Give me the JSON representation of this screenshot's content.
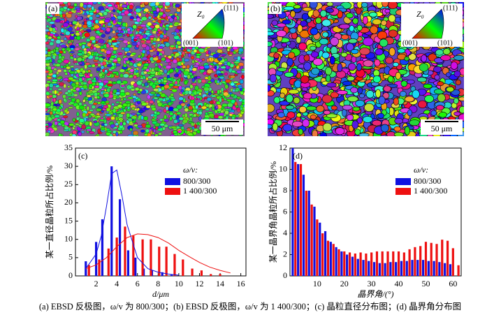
{
  "panels": [
    {
      "label": "(a)",
      "z_label": "Z₀",
      "poles": [
        "(111)",
        "(001)",
        "(101)"
      ],
      "scale_bar": "50 μm"
    },
    {
      "label": "(b)",
      "z_label": "Z₀",
      "poles": [
        "(111)",
        "(001)",
        "(101)"
      ],
      "scale_bar": "50 μm"
    }
  ],
  "chart_data": [
    {
      "type": "bar",
      "panel_label": "(c)",
      "ylabel": "某一直径晶粒所占比例/%",
      "xlabel": "d/μm",
      "legend_title": "ω/v:",
      "xlim": [
        0,
        16.5
      ],
      "ylim": [
        0,
        35
      ],
      "xticks": [
        2,
        4,
        6,
        8,
        10,
        12,
        14,
        16
      ],
      "yticks": [
        0,
        5,
        10,
        15,
        20,
        25,
        30,
        35
      ],
      "series": [
        {
          "name": "800/300",
          "color": "#1010e0",
          "x": [
            1,
            2,
            2.6,
            3.5,
            4.3,
            5.1,
            5.8,
            6.6,
            7.4,
            8.4,
            9.3
          ],
          "values": [
            4,
            9.3,
            15.5,
            30,
            21,
            7,
            5,
            2,
            1.5,
            1,
            0.3
          ]
        },
        {
          "name": "1 400/300",
          "color": "#ee1010",
          "x": [
            1.3,
            2.3,
            3.2,
            4.0,
            4.8,
            5.6,
            6.5,
            7.3,
            8.1,
            8.8,
            9.6,
            10.4,
            11.3,
            12.2,
            13.1,
            14.0
          ],
          "values": [
            3,
            4.5,
            7.5,
            10.5,
            13.5,
            11,
            10,
            10,
            8,
            8,
            6,
            4.5,
            2,
            1.5,
            0.5,
            0.5
          ]
        }
      ],
      "curves": [
        {
          "color": "#1010e0",
          "x": [
            1,
            2,
            2.5,
            3,
            3.5,
            4,
            4.5,
            5,
            6,
            7,
            8,
            9,
            10
          ],
          "values": [
            2,
            6,
            11,
            19,
            28,
            29,
            22,
            14,
            5,
            2,
            1,
            0.5,
            0.2
          ]
        },
        {
          "color": "#ee1010",
          "x": [
            1,
            2,
            3,
            4,
            5,
            6,
            7,
            8,
            9,
            10,
            11,
            12,
            13,
            14,
            15
          ],
          "values": [
            2,
            3,
            5,
            8,
            10.5,
            11.5,
            11.3,
            10.5,
            9,
            7,
            5.3,
            3.7,
            2.4,
            1.5,
            0.8
          ]
        }
      ]
    },
    {
      "type": "bar",
      "panel_label": "(d)",
      "ylabel": "某一晶界角晶粒所占比例/%",
      "xlabel": "晶界角/(°)",
      "legend_title": "ω/v:",
      "xlim": [
        0,
        63
      ],
      "ylim": [
        0,
        12
      ],
      "xticks": [
        10,
        20,
        30,
        40,
        50,
        60
      ],
      "yticks": [
        0,
        2,
        4,
        6,
        8,
        10,
        12
      ],
      "series": [
        {
          "name": "800/300",
          "color": "#1010e0",
          "x": [
            1,
            3,
            5,
            7,
            9,
            11,
            13,
            15,
            17,
            19,
            21,
            23,
            25,
            27,
            29,
            31,
            33,
            35,
            37,
            39,
            41,
            43,
            45,
            47,
            49,
            51,
            53,
            55,
            57,
            59
          ],
          "values": [
            12,
            10.5,
            9.5,
            8,
            6.5,
            5,
            4.2,
            3.2,
            2.7,
            2.3,
            2,
            1.8,
            1.6,
            1.5,
            1.4,
            1.3,
            1.2,
            1.2,
            1.3,
            1.3,
            1.4,
            1.4,
            1.5,
            1.5,
            1.5,
            1.4,
            1.4,
            1.3,
            1.2,
            1.1
          ]
        },
        {
          "name": "1 400/300",
          "color": "#ee1010",
          "x": [
            2,
            4,
            6,
            8,
            10,
            12,
            14,
            16,
            18,
            20,
            22,
            24,
            26,
            28,
            30,
            32,
            34,
            36,
            38,
            40,
            42,
            44,
            46,
            48,
            50,
            52,
            54,
            56,
            58,
            60,
            62
          ],
          "values": [
            10.7,
            10.5,
            8,
            6.7,
            5.3,
            4,
            3.3,
            3,
            2.5,
            2.3,
            2.2,
            2.1,
            2.2,
            2.1,
            2.2,
            2.3,
            2.3,
            2.3,
            2.3,
            2.3,
            2.2,
            2.5,
            2.7,
            2.8,
            3.2,
            3.1,
            3,
            3.4,
            3.3,
            2.6,
            1
          ]
        }
      ]
    }
  ],
  "caption": "(a) EBSD 反极图，ω/v 为 800/300；(b) EBSD 反极图，ω/v 为 1 400/300；(c) 晶粒直径分布图；(d) 晶界角分布图"
}
